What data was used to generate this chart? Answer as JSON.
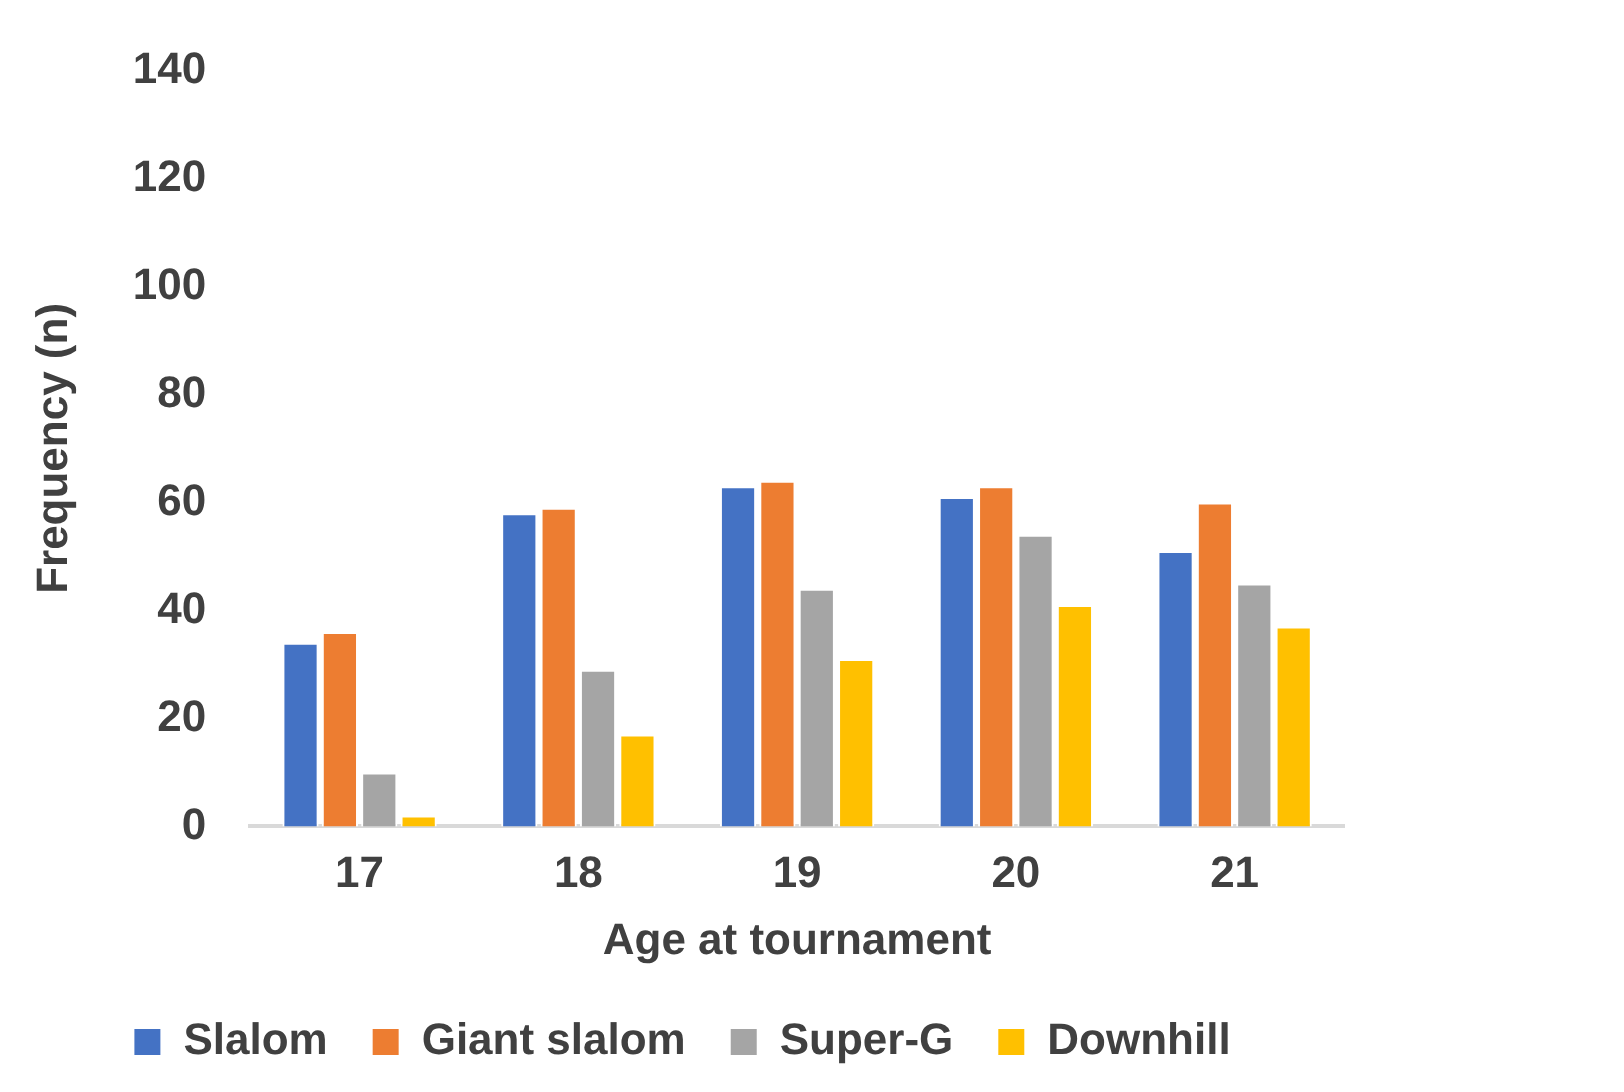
{
  "chart_data": {
    "type": "bar",
    "xlabel": "Age at tournament",
    "ylabel": "Frequency (n)",
    "categories": [
      "17",
      "18",
      "19",
      "20",
      "21"
    ],
    "series": [
      {
        "name": "Slalom",
        "color": "#4472c4",
        "values": [
          34,
          58,
          63,
          61,
          51
        ]
      },
      {
        "name": "Giant slalom",
        "color": "#ed7d31",
        "values": [
          36,
          59,
          64,
          63,
          60
        ]
      },
      {
        "name": "Super-G",
        "color": "#a5a5a5",
        "values": [
          10,
          29,
          44,
          54,
          45
        ]
      },
      {
        "name": "Downhill",
        "color": "#ffc000",
        "values": [
          2,
          17,
          31,
          41,
          37
        ]
      }
    ],
    "ylim": [
      0,
      140
    ],
    "yticks": [
      0,
      20,
      40,
      60,
      80,
      100,
      120,
      140
    ],
    "grid": false,
    "legend": "bottom"
  }
}
